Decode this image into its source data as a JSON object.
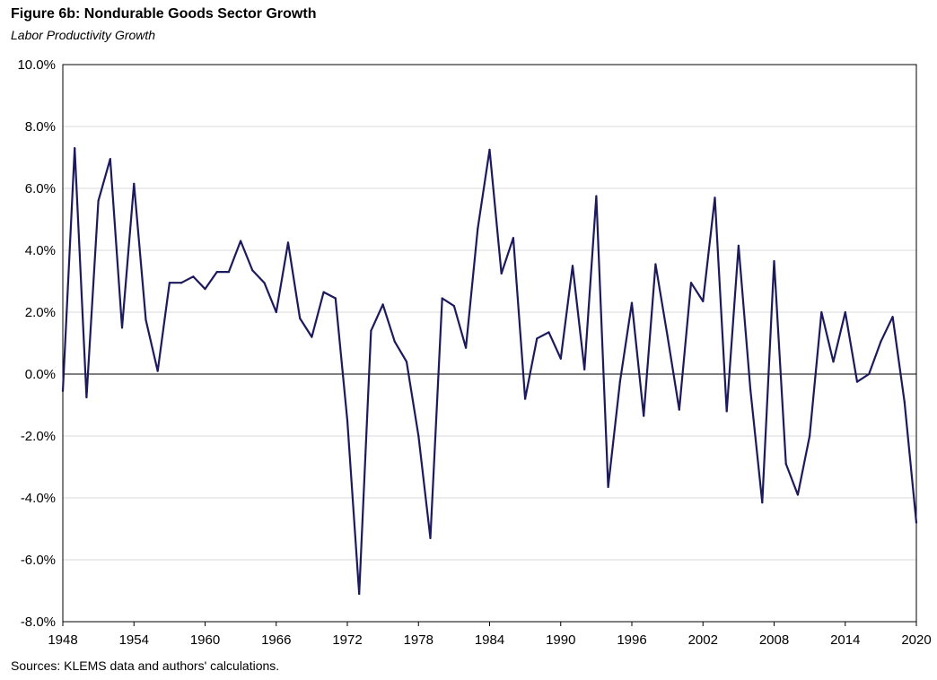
{
  "chart_data": {
    "type": "line",
    "title": "Figure 6b: Nondurable Goods Sector Growth",
    "subtitle": "Labor Productivity Growth",
    "source": "Sources: KLEMS data and authors' calculations.",
    "xlabel": "",
    "ylabel": "",
    "xlim": [
      1948,
      2020
    ],
    "ylim": [
      -8.0,
      10.0
    ],
    "y_ticks": [
      10,
      8,
      6,
      4,
      2,
      0,
      -2,
      -4,
      -6,
      -8
    ],
    "y_tick_labels": [
      "10.0%",
      "8.0%",
      "6.0%",
      "4.0%",
      "2.0%",
      "0.0%",
      "-2.0%",
      "-4.0%",
      "-6.0%",
      "-8.0%"
    ],
    "x_ticks": [
      1948,
      1954,
      1960,
      1966,
      1972,
      1978,
      1984,
      1990,
      1996,
      2002,
      2008,
      2014,
      2020
    ],
    "x_tick_labels": [
      "1948",
      "1954",
      "1960",
      "1966",
      "1972",
      "1978",
      "1984",
      "1990",
      "1996",
      "2002",
      "2008",
      "2014",
      "2020"
    ],
    "grid": true,
    "zero_line": true,
    "line_color": "#1c1a5c",
    "series": [
      {
        "x": [
          1948,
          1949,
          1950,
          1951,
          1952,
          1953,
          1954,
          1955,
          1956,
          1957,
          1958,
          1959,
          1960,
          1961,
          1962,
          1963,
          1964,
          1965,
          1966,
          1967,
          1968,
          1969,
          1970,
          1971,
          1972,
          1973,
          1974,
          1975,
          1976,
          1977,
          1978,
          1979,
          1980,
          1981,
          1982,
          1983,
          1984,
          1985,
          1986,
          1987,
          1988,
          1989,
          1990,
          1991,
          1992,
          1993,
          1994,
          1995,
          1996,
          1997,
          1998,
          1999,
          2000,
          2001,
          2002,
          2003,
          2004,
          2005,
          2006,
          2007,
          2008,
          2009,
          2010,
          2011,
          2012,
          2013,
          2014,
          2015,
          2016,
          2017,
          2018,
          2019,
          2020
        ],
        "values": [
          -0.55,
          7.3,
          -0.75,
          5.6,
          6.95,
          1.5,
          6.15,
          1.75,
          0.1,
          2.95,
          2.95,
          3.15,
          2.75,
          3.3,
          3.3,
          4.3,
          3.35,
          2.95,
          2.0,
          4.25,
          1.8,
          1.2,
          2.65,
          2.45,
          -1.5,
          -7.1,
          1.4,
          2.25,
          1.05,
          0.4,
          -2.0,
          -5.3,
          2.45,
          2.2,
          0.85,
          4.7,
          7.25,
          3.25,
          4.4,
          -0.8,
          1.15,
          1.35,
          0.5,
          3.5,
          0.15,
          5.75,
          -3.65,
          -0.25,
          2.3,
          -1.35,
          3.55,
          1.25,
          -1.15,
          2.95,
          2.35,
          5.7,
          -1.2,
          4.15,
          -0.5,
          -4.15,
          3.65,
          -2.9,
          -3.9,
          -2.0,
          2.0,
          0.4,
          2.0,
          -0.25,
          0.0,
          1.05,
          1.85,
          -0.9,
          -4.8
        ]
      }
    ]
  }
}
